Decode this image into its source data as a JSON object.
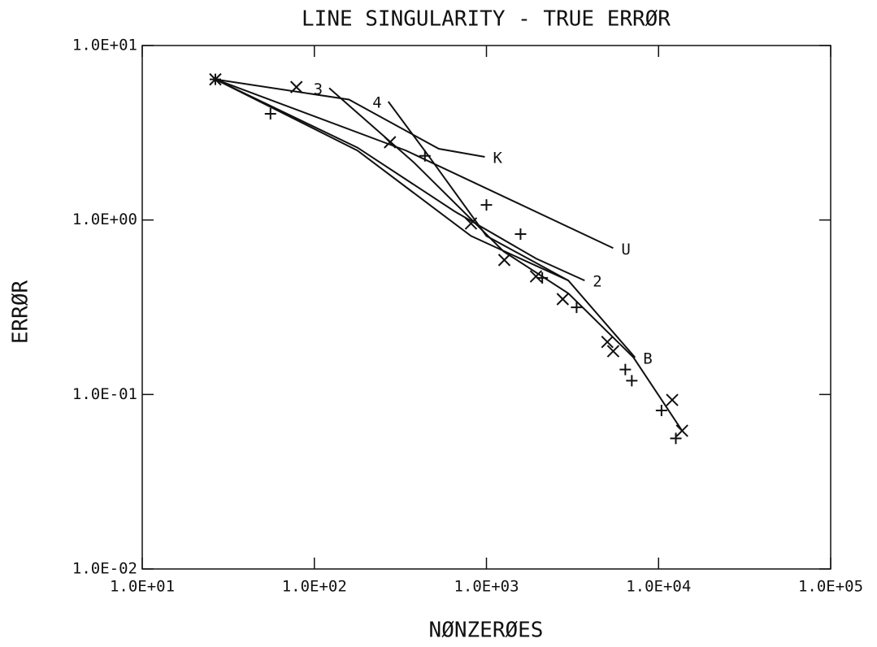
{
  "chart_data": {
    "type": "line",
    "title": "LINE SINGULARITY - TRUE ERRØR",
    "x_label": "NØNZERØES",
    "y_label": "ERRØR",
    "log_x": true,
    "log_y": true,
    "xlim": [
      10,
      100000
    ],
    "xticks": [
      {
        "value": 10,
        "label": "1.0E+01"
      },
      {
        "value": 100,
        "label": "1.0E+02"
      },
      {
        "value": 1000,
        "label": "1.0E+03"
      },
      {
        "value": 10000,
        "label": "1.0E+04"
      },
      {
        "value": 100000,
        "label": "1.0E+05"
      }
    ],
    "ylim": [
      0.01,
      10
    ],
    "yticks": [
      {
        "value": 0.01,
        "label": "1.0E-02"
      },
      {
        "value": 0.1,
        "label": "1.0E-01"
      },
      {
        "value": 1,
        "label": "1.0E+00"
      },
      {
        "value": 10,
        "label": "1.0E+01"
      }
    ],
    "series": [
      {
        "name": "K",
        "color": "#111",
        "label_at": "end",
        "x": [
          26.6,
          159,
          528,
          978
        ],
        "values": [
          6.4,
          4.9,
          2.56,
          2.3
        ]
      },
      {
        "name": "U",
        "color": "#111",
        "label_at": "end",
        "x": [
          26.6,
          341,
          5450
        ],
        "values": [
          6.4,
          2.5,
          0.69
        ]
      },
      {
        "name": "2",
        "color": "#111",
        "label_at": "end",
        "x": [
          26.6,
          178,
          654,
          1950,
          3720
        ],
        "values": [
          6.4,
          2.6,
          1.12,
          0.6,
          0.45
        ]
      },
      {
        "name": "3",
        "color": "#111",
        "label_at": "start",
        "x": [
          122,
          380,
          1260,
          2990,
          7150,
          13700
        ],
        "values": [
          5.7,
          2.13,
          0.66,
          0.38,
          0.163,
          0.062
        ]
      },
      {
        "name": "4",
        "color": "#111",
        "label_at": "start",
        "x": [
          269,
          473,
          1000,
          2990
        ],
        "values": [
          4.77,
          2.25,
          0.81,
          0.45
        ]
      },
      {
        "name": "B",
        "color": "#111",
        "label_at": "end",
        "x": [
          26.6,
          178,
          813,
          2990,
          7300
        ],
        "values": [
          6.4,
          2.5,
          0.81,
          0.45,
          0.163
        ]
      },
      {
        "color": "#111",
        "marker": "x",
        "line": false,
        "x": [
          26.6,
          78.7,
          275,
          813,
          1270,
          1940,
          2775,
          5040,
          5450,
          12000,
          13700
        ],
        "values": [
          6.4,
          5.78,
          2.79,
          0.955,
          0.59,
          0.475,
          0.352,
          0.2,
          0.177,
          0.093,
          0.062
        ]
      },
      {
        "color": "#111",
        "marker": "+",
        "line": false,
        "x": [
          26.6,
          55.6,
          439,
          1000,
          1578,
          2110,
          3340,
          6410,
          6990,
          10400,
          12600
        ],
        "values": [
          6.4,
          4.06,
          2.33,
          1.22,
          0.83,
          0.466,
          0.316,
          0.139,
          0.12,
          0.081,
          0.056
        ]
      }
    ]
  }
}
